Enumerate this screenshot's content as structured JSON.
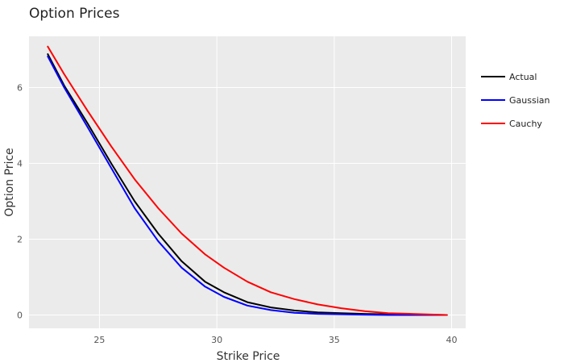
{
  "chart_data": {
    "type": "line",
    "title": "Option Prices",
    "xlabel": "Strike Price",
    "ylabel": "Option Price",
    "xlim": [
      22,
      40.6
    ],
    "ylim": [
      -0.35,
      7.35
    ],
    "xticks": [
      25,
      30,
      35,
      40
    ],
    "yticks": [
      0,
      2,
      4,
      6
    ],
    "grid": true,
    "legend_position": "right",
    "background": "#ebebeb",
    "series": [
      {
        "name": "Actual",
        "color": "#000000",
        "x": [
          22.8,
          23.5,
          24.5,
          25.5,
          26.5,
          27.5,
          28.5,
          29.5,
          30.3,
          31.3,
          32.3,
          33.3,
          34.3,
          35.3,
          36.3,
          37.3,
          38.3,
          39.8
        ],
        "y": [
          6.88,
          6.05,
          5.05,
          4.0,
          3.0,
          2.15,
          1.42,
          0.88,
          0.6,
          0.34,
          0.2,
          0.12,
          0.07,
          0.05,
          0.03,
          0.02,
          0.01,
          0.0
        ]
      },
      {
        "name": "Gaussian",
        "color": "#0000ff",
        "x": [
          22.8,
          23.5,
          24.5,
          25.5,
          26.5,
          27.5,
          28.5,
          29.5,
          30.3,
          31.3,
          32.3,
          33.3,
          34.3,
          35.3,
          36.3,
          37.3,
          38.3,
          39.8
        ],
        "y": [
          6.82,
          6.0,
          4.95,
          3.88,
          2.82,
          1.95,
          1.25,
          0.75,
          0.48,
          0.25,
          0.13,
          0.06,
          0.03,
          0.02,
          0.01,
          0.0,
          0.0,
          0.0
        ]
      },
      {
        "name": "Cauchy",
        "color": "#ff0000",
        "x": [
          22.8,
          23.5,
          24.5,
          25.5,
          26.5,
          27.5,
          28.5,
          29.5,
          30.3,
          31.3,
          32.3,
          33.3,
          34.3,
          35.3,
          36.3,
          37.3,
          38.3,
          39.8
        ],
        "y": [
          7.08,
          6.35,
          5.38,
          4.45,
          3.58,
          2.82,
          2.15,
          1.6,
          1.25,
          0.88,
          0.6,
          0.42,
          0.28,
          0.18,
          0.1,
          0.05,
          0.03,
          0.0
        ]
      }
    ]
  }
}
